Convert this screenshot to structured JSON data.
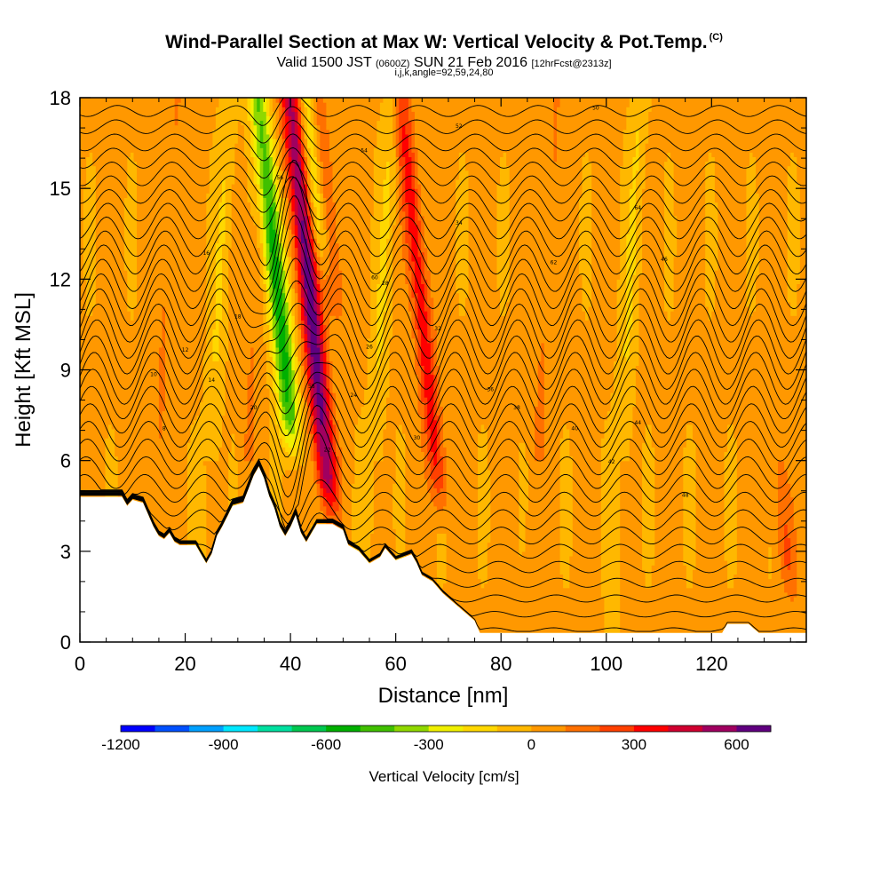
{
  "header": {
    "title": "Wind-Parallel Section at Max W: Vertical Velocity & Pot.Temp.",
    "copyright": "(C)",
    "valid_prefix": "Valid 1500 JST",
    "utc_time": "(0600Z)",
    "valid_date": "SUN 21 Feb 2016",
    "forecast": "[12hrFcst@2313z]",
    "grid_info": "i,j,k,angle=92,59,24,80"
  },
  "chart_data": {
    "type": "heatmap",
    "title": "Wind-Parallel Section at Max W: Vertical Velocity & Pot.Temp.",
    "xlabel": "Distance [nm]",
    "ylabel": "Height [Kft MSL]",
    "xlim": [
      0,
      138
    ],
    "ylim": [
      0,
      18
    ],
    "x_ticks": [
      0,
      20,
      40,
      60,
      80,
      100,
      120
    ],
    "y_ticks": [
      0,
      3,
      6,
      9,
      12,
      15,
      18
    ],
    "colorbar": {
      "title": "Vertical Velocity [cm/s]",
      "min": -1200,
      "max": 700,
      "tick_values": [
        -1200,
        -900,
        -600,
        -300,
        0,
        300,
        600
      ],
      "tick_labels": [
        "-1200",
        "-900",
        "-600",
        "-300",
        "0",
        "300",
        "600"
      ],
      "colors": [
        "#0000ff",
        "#0050ff",
        "#00a0ff",
        "#00e8ff",
        "#00e0a0",
        "#00c850",
        "#00b000",
        "#40c000",
        "#90d800",
        "#f0f000",
        "#ffd800",
        "#ffb800",
        "#ff9800",
        "#ff7000",
        "#ff4000",
        "#ff0000",
        "#d00030",
        "#a00060",
        "#600080"
      ]
    },
    "velocity_features": [
      {
        "kind": "updraft",
        "x": 45,
        "z_bottom": 4,
        "z_top": 18,
        "peak": 650
      },
      {
        "kind": "downdraft",
        "x": 39,
        "z_bottom": 6,
        "z_top": 18,
        "peak": -600
      },
      {
        "kind": "updraft",
        "x": 66,
        "z_bottom": 4,
        "z_top": 18,
        "peak": 350
      },
      {
        "kind": "updraft",
        "x": 50,
        "z_bottom": 10,
        "z_top": 18,
        "peak": 200
      },
      {
        "kind": "downdraft",
        "x": 48,
        "z_bottom": 12,
        "z_top": 18,
        "peak": -300
      },
      {
        "kind": "updraft",
        "x": 131,
        "z_bottom": 1,
        "z_top": 5,
        "peak": 180
      }
    ],
    "terrain_kft": [
      [
        0,
        4.8
      ],
      [
        4,
        4.8
      ],
      [
        8,
        4.8
      ],
      [
        9,
        4.5
      ],
      [
        10,
        4.7
      ],
      [
        12,
        4.6
      ],
      [
        13,
        4.2
      ],
      [
        14,
        3.8
      ],
      [
        15,
        3.5
      ],
      [
        16,
        3.4
      ],
      [
        17,
        3.6
      ],
      [
        18,
        3.3
      ],
      [
        19,
        3.2
      ],
      [
        22,
        3.2
      ],
      [
        24,
        2.6
      ],
      [
        25,
        2.9
      ],
      [
        26,
        3.5
      ],
      [
        27,
        3.8
      ],
      [
        29,
        4.5
      ],
      [
        31,
        4.6
      ],
      [
        33,
        5.5
      ],
      [
        34,
        5.8
      ],
      [
        35,
        5.4
      ],
      [
        36,
        4.8
      ],
      [
        37,
        4.4
      ],
      [
        38,
        3.8
      ],
      [
        39,
        3.5
      ],
      [
        40,
        3.8
      ],
      [
        41,
        4.2
      ],
      [
        42,
        3.6
      ],
      [
        43,
        3.3
      ],
      [
        44,
        3.6
      ],
      [
        45,
        3.9
      ],
      [
        48,
        3.9
      ],
      [
        50,
        3.7
      ],
      [
        51,
        3.2
      ],
      [
        53,
        3.0
      ],
      [
        55,
        2.6
      ],
      [
        57,
        2.8
      ],
      [
        58,
        3.1
      ],
      [
        60,
        2.7
      ],
      [
        63,
        2.9
      ],
      [
        64,
        2.6
      ],
      [
        65,
        2.2
      ],
      [
        67,
        2.0
      ],
      [
        69,
        1.6
      ],
      [
        71,
        1.3
      ],
      [
        73,
        1.0
      ],
      [
        75,
        0.7
      ],
      [
        76,
        0.3
      ],
      [
        78,
        0.3
      ],
      [
        122,
        0.3
      ],
      [
        123,
        0.6
      ],
      [
        127,
        0.6
      ],
      [
        129,
        0.3
      ],
      [
        138,
        0.3
      ]
    ],
    "theta_contour_interval_K": 2,
    "contour_labels": [
      "8",
      "10",
      "12",
      "14",
      "16",
      "18",
      "20",
      "22",
      "24",
      "26",
      "28",
      "30",
      "32",
      "34",
      "36",
      "38",
      "40",
      "42",
      "44",
      "46",
      "48",
      "50",
      "52",
      "54",
      "56",
      "58",
      "60",
      "62",
      "64"
    ]
  }
}
